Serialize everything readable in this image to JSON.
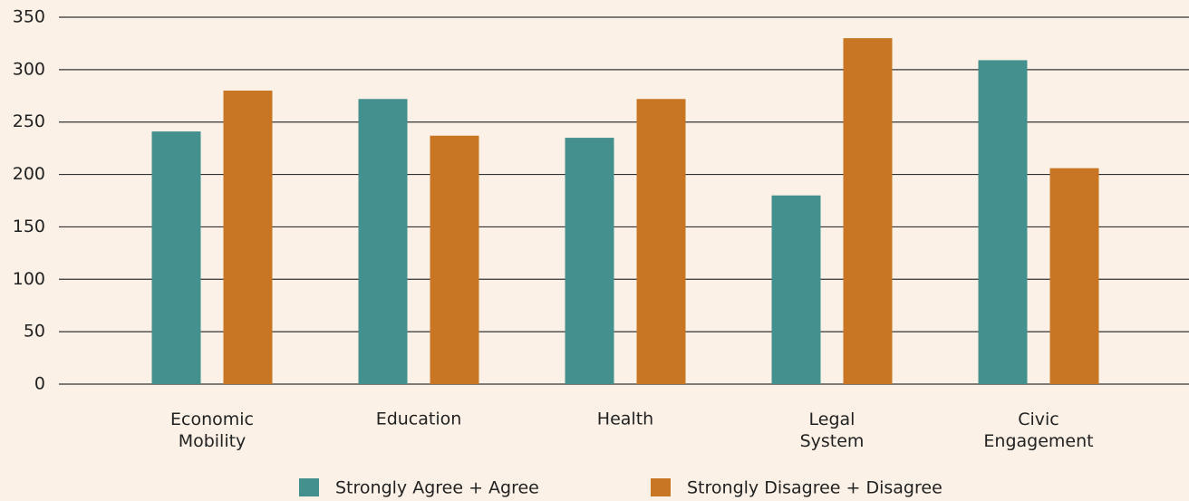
{
  "chart_data": {
    "type": "bar",
    "categories": [
      "Economic\nMobility",
      "Education",
      "Health",
      "Legal\nSystem",
      "Civic\nEngagement"
    ],
    "series": [
      {
        "name": "Strongly Agree + Agree",
        "color": "#44908e",
        "values": [
          241,
          272,
          235,
          180,
          309
        ]
      },
      {
        "name": "Strongly Disagree + Disagree",
        "color": "#c87624",
        "values": [
          280,
          237,
          272,
          330,
          206
        ]
      }
    ],
    "ylim": [
      0,
      350
    ],
    "yticks": [
      0,
      50,
      100,
      150,
      200,
      250,
      300,
      350
    ],
    "grid": true,
    "legend": "bottom"
  }
}
